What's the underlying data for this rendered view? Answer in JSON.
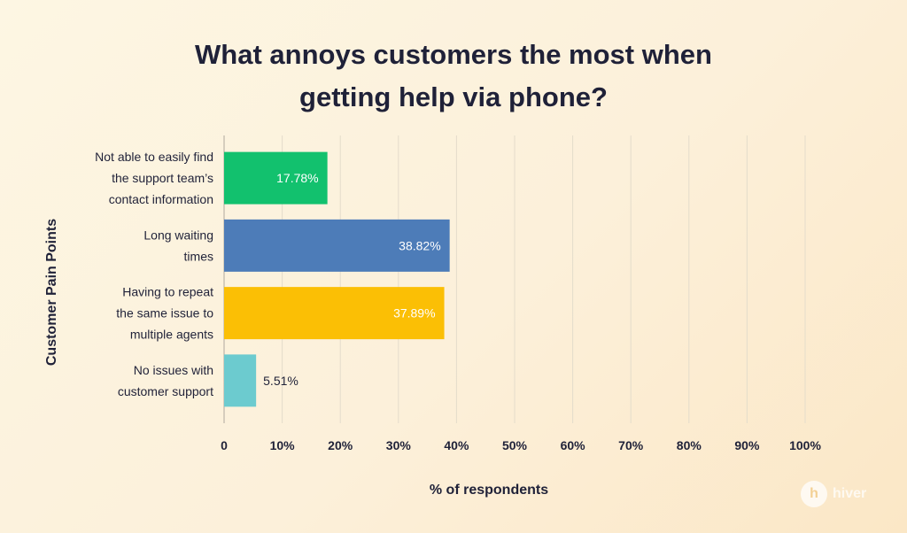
{
  "title_lines": [
    "What annoys customers the most when",
    "getting help via phone?"
  ],
  "watermark": {
    "mark": "h",
    "text": "hiver"
  },
  "chart_data": {
    "type": "bar",
    "orientation": "horizontal",
    "title": "What annoys customers the most when getting help via phone?",
    "xlabel": "% of respondents",
    "ylabel": "Customer Pain Points",
    "xlim": [
      0,
      100
    ],
    "ticks": [
      "0",
      "10%",
      "20%",
      "30%",
      "40%",
      "50%",
      "60%",
      "70%",
      "80%",
      "90%",
      "100%"
    ],
    "grid": true,
    "categories": [
      [
        "Not able to easily find",
        "the support team’s",
        "contact information"
      ],
      [
        "Long waiting",
        "times"
      ],
      [
        "Having to repeat",
        "the same issue to",
        "multiple agents"
      ],
      [
        "No issues with",
        "customer support"
      ]
    ],
    "values": [
      17.78,
      38.82,
      37.89,
      5.51
    ],
    "value_labels": [
      "17.78%",
      "38.82%",
      "37.89%",
      "5.51%"
    ],
    "colors": [
      "#12c16e",
      "#4d7cb8",
      "#fbbf05",
      "#6ccbcf"
    ],
    "gridline_color": "#e4dccb",
    "axis_color": "#c9c1b3"
  }
}
